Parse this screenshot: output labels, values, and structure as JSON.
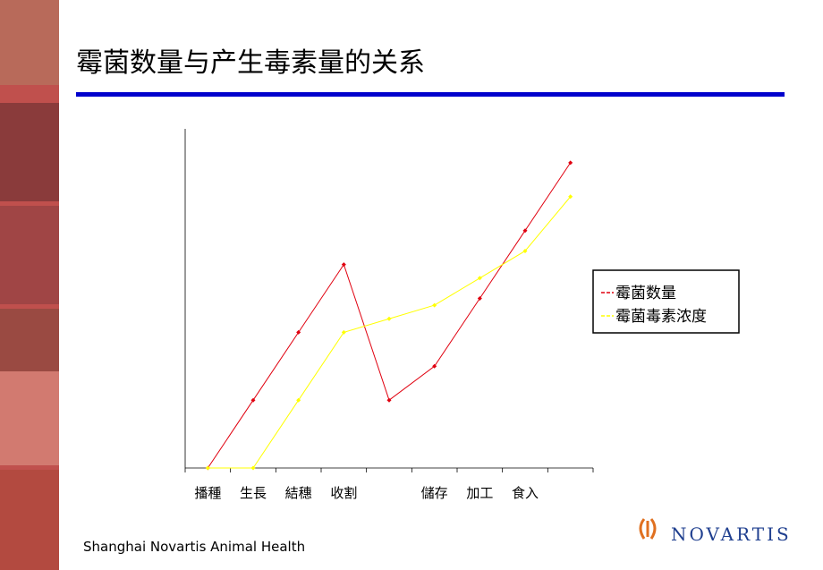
{
  "header": {
    "title": "霉菌数量与产生毒素量的关系"
  },
  "footer": {
    "left": "Shanghai Novartis Animal Health",
    "logo": "NOVARTIS"
  },
  "chart_data": {
    "type": "line",
    "categories": [
      "播種",
      "生長",
      "結穗",
      "收割",
      null,
      "儲存",
      "加工",
      "食入",
      null
    ],
    "series": [
      {
        "name": "霉菌数量",
        "color": "#e0000f",
        "values": [
          0,
          20,
          40,
          60,
          20,
          30,
          50,
          70,
          90
        ]
      },
      {
        "name": "霉菌毒素浓度",
        "color": "#ffff00",
        "values": [
          0,
          0,
          20,
          40,
          44,
          48,
          56,
          64,
          80
        ]
      }
    ],
    "ylim": [
      0,
      100
    ],
    "legend": "right"
  }
}
